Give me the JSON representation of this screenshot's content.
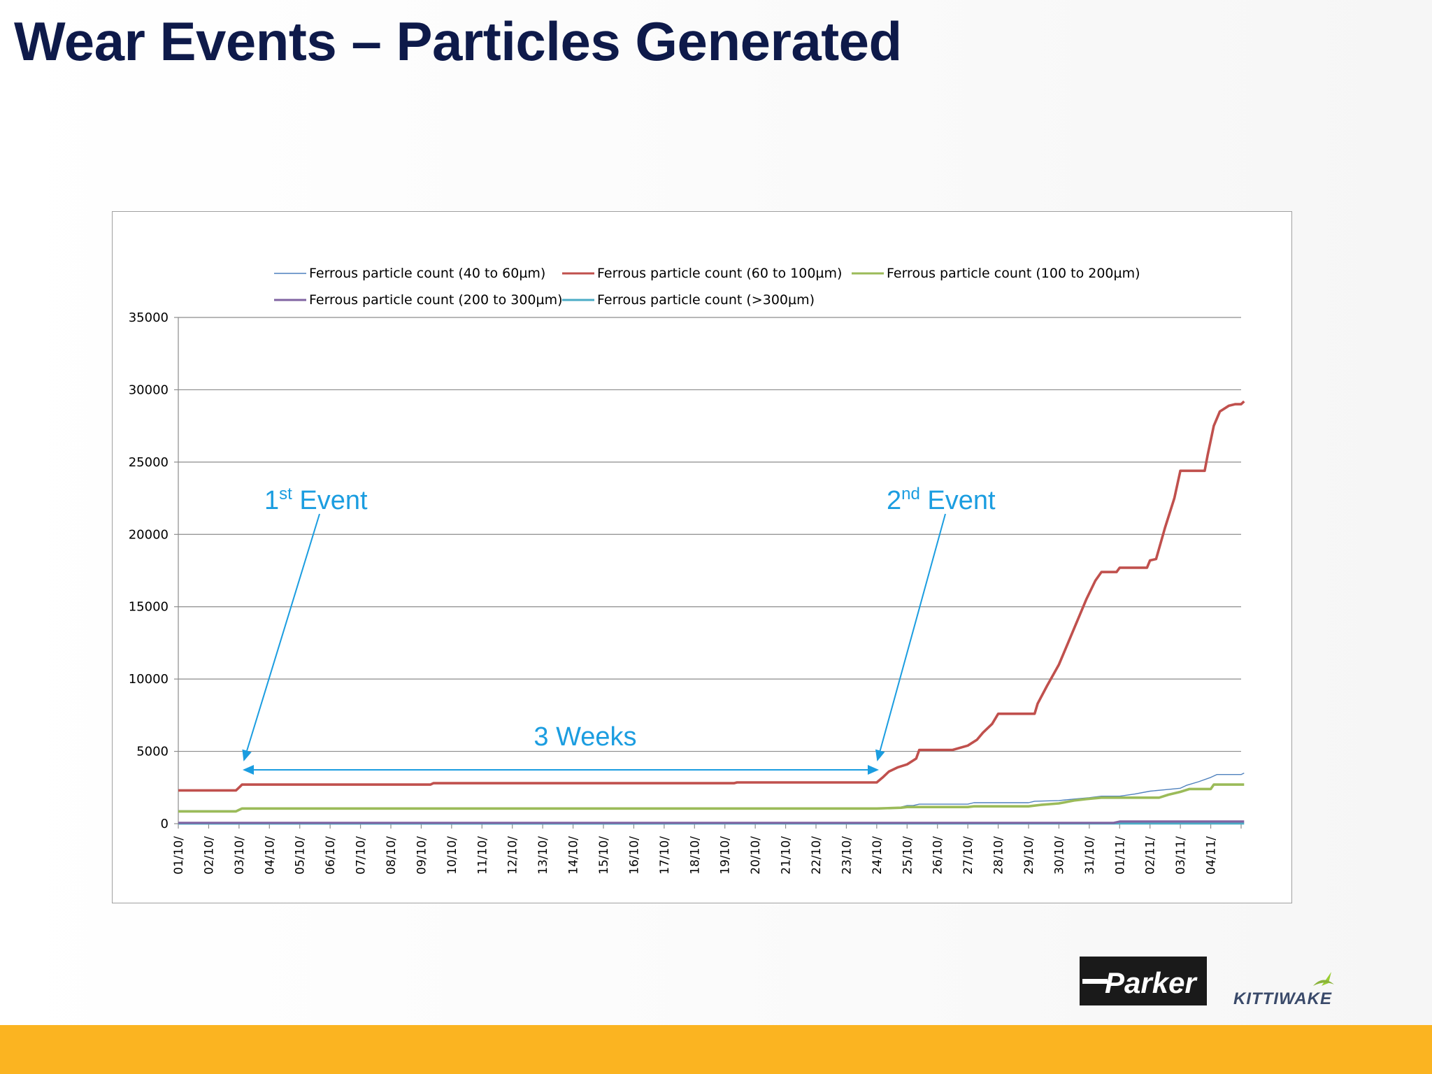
{
  "title": "Wear Events – Particles Generated",
  "colors": {
    "title": "#0e1a4a",
    "accent_bar": "#fbb421",
    "annotation": "#1b9de0",
    "series_40_60": "#4f81bd",
    "series_60_100": "#c0504d",
    "series_100_200": "#9bbb59",
    "series_200_300": "#8064a2",
    "series_300_plus": "#4bacc6"
  },
  "annotations": {
    "event1": {
      "num": "1",
      "sup": "st",
      "text": " Event"
    },
    "event2": {
      "num": "2",
      "sup": "nd",
      "text": " Event"
    },
    "duration": "3 Weeks"
  },
  "logos": {
    "parker": "Parker",
    "kittiwake": "KITTIWAKE"
  },
  "chart_data": {
    "type": "line",
    "ylim": [
      0,
      35000
    ],
    "yticks": [
      0,
      5000,
      10000,
      15000,
      20000,
      25000,
      30000,
      35000
    ],
    "grid": true,
    "legend_position": "top",
    "xticks": [
      "01/10/",
      "02/10/",
      "03/10/",
      "04/10/",
      "05/10/",
      "06/10/",
      "07/10/",
      "08/10/",
      "09/10/",
      "10/10/",
      "11/10/",
      "12/10/",
      "13/10/",
      "14/10/",
      "15/10/",
      "16/10/",
      "17/10/",
      "18/10/",
      "19/10/",
      "20/10/",
      "21/10/",
      "22/10/",
      "23/10/",
      "24/10/",
      "25/10/",
      "26/10/",
      "27/10/",
      "28/10/",
      "29/10/",
      "30/10/",
      "31/10/",
      "01/11/",
      "02/11/",
      "03/11/",
      "04/11/"
    ],
    "xlim": [
      0,
      35
    ],
    "series": [
      {
        "name": "Ferrous particle count (40 to 60µm)",
        "color": "#4f81bd",
        "width": "thin",
        "points": [
          [
            0,
            900
          ],
          [
            1.9,
            900
          ],
          [
            2,
            1000
          ],
          [
            18.3,
            1000
          ],
          [
            18.4,
            1050
          ],
          [
            21,
            1050
          ],
          [
            21.1,
            1000
          ],
          [
            23,
            1000
          ],
          [
            23.8,
            1150
          ],
          [
            24,
            1250
          ],
          [
            24.2,
            1250
          ],
          [
            24.4,
            1350
          ],
          [
            26,
            1350
          ],
          [
            26.2,
            1450
          ],
          [
            28,
            1450
          ],
          [
            28.2,
            1550
          ],
          [
            29,
            1600
          ],
          [
            29.5,
            1700
          ],
          [
            30,
            1800
          ],
          [
            30.4,
            1900
          ],
          [
            31,
            1900
          ],
          [
            31.5,
            2050
          ],
          [
            32,
            2250
          ],
          [
            32.5,
            2350
          ],
          [
            33,
            2450
          ],
          [
            33.2,
            2650
          ],
          [
            33.6,
            2900
          ],
          [
            34,
            3200
          ],
          [
            34.2,
            3400
          ],
          [
            35,
            3400
          ],
          [
            35.1,
            3500
          ]
        ]
      },
      {
        "name": "Ferrous particle count (60 to 100µm)",
        "color": "#c0504d",
        "width": "thick",
        "points": [
          [
            0,
            2300
          ],
          [
            1.9,
            2300
          ],
          [
            2,
            2500
          ],
          [
            2.1,
            2700
          ],
          [
            8.3,
            2700
          ],
          [
            8.4,
            2800
          ],
          [
            18.3,
            2800
          ],
          [
            18.4,
            2850
          ],
          [
            23,
            2850
          ],
          [
            23.2,
            3200
          ],
          [
            23.4,
            3600
          ],
          [
            23.7,
            3900
          ],
          [
            24,
            4100
          ],
          [
            24.3,
            4500
          ],
          [
            24.4,
            5100
          ],
          [
            25.5,
            5100
          ],
          [
            26,
            5400
          ],
          [
            26.3,
            5800
          ],
          [
            26.5,
            6300
          ],
          [
            26.8,
            6900
          ],
          [
            27,
            7600
          ],
          [
            28.2,
            7600
          ],
          [
            28.3,
            8300
          ],
          [
            28.6,
            9500
          ],
          [
            29,
            11000
          ],
          [
            29.3,
            12500
          ],
          [
            29.6,
            14000
          ],
          [
            29.9,
            15500
          ],
          [
            30.2,
            16800
          ],
          [
            30.4,
            17400
          ],
          [
            30.9,
            17400
          ],
          [
            31,
            17700
          ],
          [
            31.9,
            17700
          ],
          [
            32,
            18200
          ],
          [
            32.2,
            18300
          ],
          [
            32.5,
            20500
          ],
          [
            32.8,
            22500
          ],
          [
            33,
            24400
          ],
          [
            33.8,
            24400
          ],
          [
            33.9,
            25500
          ],
          [
            34.1,
            27500
          ],
          [
            34.3,
            28500
          ],
          [
            34.6,
            28900
          ],
          [
            34.8,
            29000
          ],
          [
            35,
            29000
          ],
          [
            35.1,
            29200
          ]
        ]
      },
      {
        "name": "Ferrous particle count (100 to 200µm)",
        "color": "#9bbb59",
        "width": "thick",
        "points": [
          [
            0,
            850
          ],
          [
            1.9,
            850
          ],
          [
            2,
            950
          ],
          [
            2.1,
            1050
          ],
          [
            23,
            1050
          ],
          [
            23.8,
            1100
          ],
          [
            24,
            1150
          ],
          [
            26,
            1150
          ],
          [
            26.2,
            1200
          ],
          [
            28,
            1200
          ],
          [
            28.4,
            1300
          ],
          [
            29,
            1400
          ],
          [
            29.5,
            1600
          ],
          [
            29.9,
            1700
          ],
          [
            30.4,
            1800
          ],
          [
            32.3,
            1800
          ],
          [
            32.6,
            2000
          ],
          [
            33,
            2200
          ],
          [
            33.3,
            2400
          ],
          [
            34,
            2400
          ],
          [
            34.1,
            2700
          ],
          [
            35.1,
            2700
          ]
        ]
      },
      {
        "name": "Ferrous particle count (200 to 300µm)",
        "color": "#8064a2",
        "width": "medium",
        "points": [
          [
            0,
            60
          ],
          [
            30.8,
            60
          ],
          [
            31,
            150
          ],
          [
            35.1,
            150
          ]
        ]
      },
      {
        "name": "Ferrous particle count (>300µm)",
        "color": "#4bacc6",
        "width": "medium",
        "points": [
          [
            0,
            10
          ],
          [
            35.1,
            20
          ]
        ]
      }
    ]
  }
}
